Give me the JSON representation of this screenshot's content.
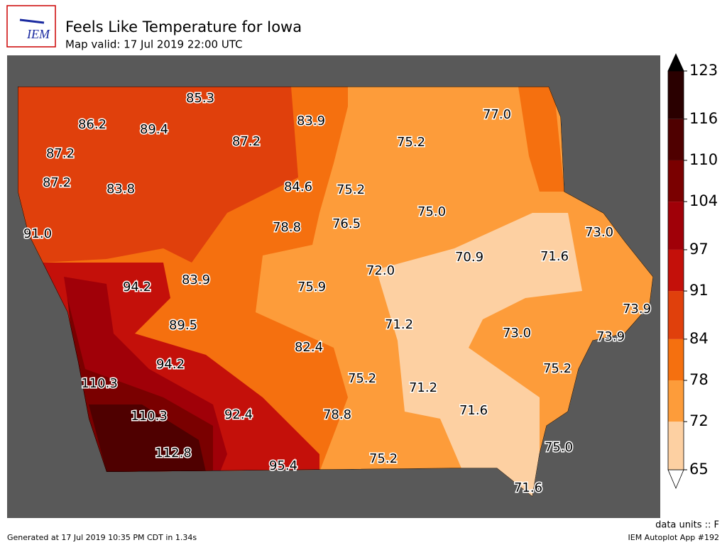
{
  "header": {
    "logo": "IEM",
    "title": "Feels Like Temperature for Iowa",
    "subtitle": "Map valid: 17 Jul 2019 22:00 UTC"
  },
  "labels": [
    "85.3",
    "86.2",
    "89.4",
    "83.9",
    "77.0",
    "87.2",
    "87.2",
    "75.2",
    "87.2",
    "83.8",
    "84.6",
    "75.2",
    "75.0",
    "91.0",
    "78.8",
    "76.5",
    "73.0",
    "70.9",
    "71.6",
    "72.0",
    "94.2",
    "83.9",
    "75.9",
    "73.9",
    "71.2",
    "89.5",
    "73.0",
    "73.9",
    "82.4",
    "94.2",
    "75.2",
    "110.3",
    "75.2",
    "71.2",
    "110.3",
    "92.4",
    "78.8",
    "71.6",
    "112.8",
    "75.2",
    "75.0",
    "95.4",
    "71.6"
  ],
  "colorbar": {
    "ticks": [
      65,
      72,
      78,
      84,
      91,
      97,
      104,
      110,
      116,
      123
    ],
    "colors": [
      "#fdd0a2",
      "#fd9c3a",
      "#f5700f",
      "#e0400c",
      "#c4100a",
      "#a00008",
      "#7a0000",
      "#4f0000",
      "#2a0000"
    ],
    "over": "#000000",
    "under": "#ffffff"
  },
  "footer": {
    "generated": "Generated at 17 Jul 2019 10:35 PM CDT in 1.34s",
    "units": "data units :: F",
    "app": "IEM Autoplot App #192"
  }
}
